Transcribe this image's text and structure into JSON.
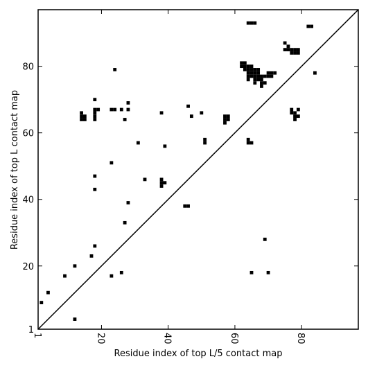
{
  "chart_data": {
    "type": "scatter",
    "xlabel": "Residue index of top L/5 contact map",
    "ylabel": "Residue index of top L contact map",
    "color": "#000000",
    "xlim": [
      1,
      97
    ],
    "ylim": [
      1,
      97
    ],
    "xticks": [
      1,
      20,
      40,
      60,
      80
    ],
    "yticks": [
      1,
      20,
      40,
      60,
      80
    ],
    "x": [
      2,
      4,
      9,
      12,
      12,
      17,
      18,
      18,
      18,
      23,
      26,
      27,
      28,
      33,
      38,
      38,
      38,
      39,
      45,
      46,
      23,
      31,
      39,
      51,
      51,
      18,
      24,
      14,
      14,
      14,
      15,
      15,
      18,
      18,
      18,
      18,
      19,
      23,
      24,
      26,
      28,
      28,
      27,
      38,
      46,
      47,
      50,
      57,
      57,
      57,
      58,
      58,
      64,
      64,
      65,
      65,
      70,
      69,
      64,
      65,
      66,
      82,
      83,
      84,
      62,
      62,
      63,
      63,
      63,
      64,
      64,
      64,
      64,
      64,
      65,
      65,
      65,
      65,
      66,
      66,
      66,
      66,
      66,
      67,
      67,
      67,
      67,
      68,
      68,
      68,
      68,
      69,
      69,
      70,
      70,
      71,
      71,
      72,
      75,
      76,
      76,
      77,
      77,
      78,
      78,
      79,
      79,
      75,
      77,
      77,
      78,
      78,
      78,
      79,
      79
    ],
    "values": [
      9,
      12,
      17,
      20,
      4,
      23,
      26,
      43,
      47,
      17,
      18,
      33,
      39,
      46,
      44,
      45,
      46,
      45,
      38,
      38,
      51,
      57,
      56,
      57,
      58,
      70,
      79,
      64,
      65,
      66,
      64,
      65,
      64,
      65,
      66,
      67,
      67,
      67,
      67,
      67,
      69,
      67,
      64,
      66,
      68,
      65,
      66,
      63,
      64,
      65,
      64,
      65,
      57,
      58,
      57,
      18,
      18,
      28,
      93,
      93,
      93,
      92,
      92,
      78,
      80,
      81,
      80,
      81,
      79,
      80,
      79,
      78,
      77,
      76,
      80,
      79,
      78,
      77,
      79,
      78,
      77,
      76,
      75,
      79,
      78,
      77,
      76,
      77,
      76,
      75,
      74,
      77,
      75,
      77,
      78,
      78,
      77,
      78,
      85,
      85,
      86,
      84,
      85,
      84,
      85,
      84,
      85,
      87,
      67,
      66,
      66,
      65,
      64,
      65,
      67
    ]
  }
}
